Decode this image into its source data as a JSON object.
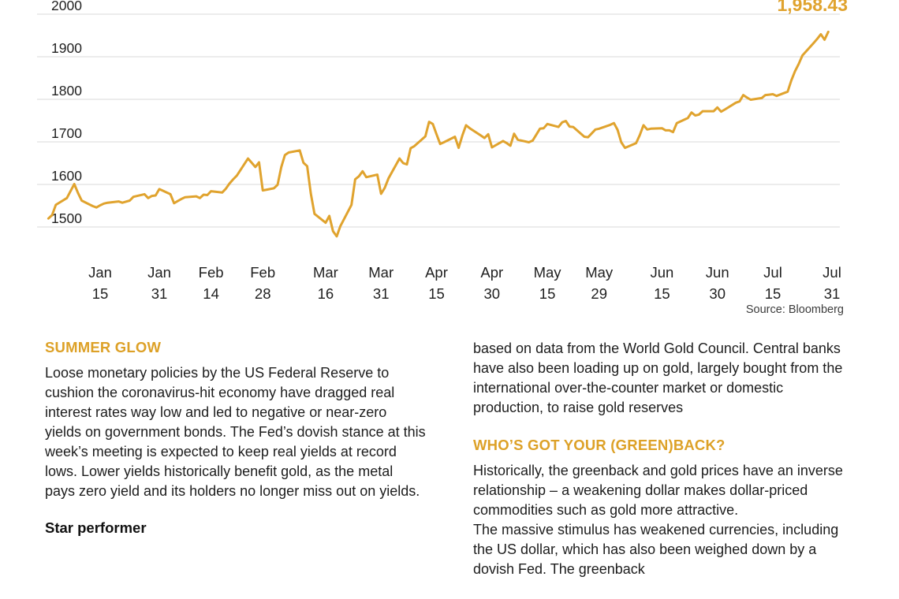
{
  "chart_data": {
    "type": "line",
    "title": "",
    "last_value_label": "1,958.43",
    "source": "Source: Bloomberg",
    "line_color": "#E0A32E",
    "grid_color": "#d8d8d8",
    "axis_text_color": "#1f1f1f",
    "source_text_color": "#3d3d3d",
    "ylim": [
      1450,
      2020
    ],
    "yticks": [
      2000,
      1900,
      1800,
      1700,
      1600,
      1500
    ],
    "xticks": [
      {
        "month": "Jan",
        "day": "15",
        "doy": 15
      },
      {
        "month": "Jan",
        "day": "31",
        "doy": 31
      },
      {
        "month": "Feb",
        "day": "14",
        "doy": 45
      },
      {
        "month": "Feb",
        "day": "28",
        "doy": 59
      },
      {
        "month": "Mar",
        "day": "16",
        "doy": 76
      },
      {
        "month": "Mar",
        "day": "31",
        "doy": 91
      },
      {
        "month": "Apr",
        "day": "15",
        "doy": 106
      },
      {
        "month": "Apr",
        "day": "30",
        "doy": 121
      },
      {
        "month": "May",
        "day": "15",
        "doy": 136
      },
      {
        "month": "May",
        "day": "29",
        "doy": 150
      },
      {
        "month": "Jun",
        "day": "15",
        "doy": 167
      },
      {
        "month": "Jun",
        "day": "30",
        "doy": 182
      },
      {
        "month": "Jul",
        "day": "15",
        "doy": 197
      },
      {
        "month": "Jul",
        "day": "31",
        "doy": 213
      }
    ],
    "series": [
      {
        "name": "gold-price",
        "points": [
          [
            1,
            1520
          ],
          [
            2,
            1528
          ],
          [
            3,
            1552
          ],
          [
            6,
            1568
          ],
          [
            8,
            1601
          ],
          [
            9,
            1580
          ],
          [
            10,
            1562
          ],
          [
            13,
            1549
          ],
          [
            14,
            1546
          ],
          [
            15,
            1551
          ],
          [
            16,
            1555
          ],
          [
            17,
            1557
          ],
          [
            20,
            1560
          ],
          [
            21,
            1557
          ],
          [
            23,
            1562
          ],
          [
            24,
            1571
          ],
          [
            27,
            1577
          ],
          [
            28,
            1568
          ],
          [
            29,
            1573
          ],
          [
            30,
            1574
          ],
          [
            31,
            1589
          ],
          [
            34,
            1577
          ],
          [
            35,
            1556
          ],
          [
            36,
            1561
          ],
          [
            37,
            1566
          ],
          [
            38,
            1570
          ],
          [
            41,
            1572
          ],
          [
            42,
            1568
          ],
          [
            43,
            1576
          ],
          [
            44,
            1575
          ],
          [
            45,
            1584
          ],
          [
            48,
            1581
          ],
          [
            49,
            1590
          ],
          [
            50,
            1602
          ],
          [
            51,
            1612
          ],
          [
            52,
            1621
          ],
          [
            55,
            1661
          ],
          [
            56,
            1651
          ],
          [
            57,
            1641
          ],
          [
            58,
            1652
          ],
          [
            59,
            1586
          ],
          [
            62,
            1591
          ],
          [
            63,
            1599
          ],
          [
            64,
            1641
          ],
          [
            65,
            1669
          ],
          [
            66,
            1675
          ],
          [
            69,
            1680
          ],
          [
            70,
            1651
          ],
          [
            71,
            1643
          ],
          [
            72,
            1578
          ],
          [
            73,
            1531
          ],
          [
            76,
            1510
          ],
          [
            77,
            1526
          ],
          [
            78,
            1490
          ],
          [
            79,
            1478
          ],
          [
            80,
            1502
          ],
          [
            83,
            1552
          ],
          [
            84,
            1612
          ],
          [
            85,
            1619
          ],
          [
            86,
            1631
          ],
          [
            87,
            1617
          ],
          [
            90,
            1623
          ],
          [
            91,
            1578
          ],
          [
            92,
            1592
          ],
          [
            93,
            1614
          ],
          [
            96,
            1661
          ],
          [
            97,
            1650
          ],
          [
            98,
            1647
          ],
          [
            99,
            1685
          ],
          [
            100,
            1690
          ],
          [
            103,
            1713
          ],
          [
            104,
            1747
          ],
          [
            105,
            1742
          ],
          [
            106,
            1718
          ],
          [
            107,
            1695
          ],
          [
            108,
            1699
          ],
          [
            111,
            1712
          ],
          [
            112,
            1686
          ],
          [
            113,
            1715
          ],
          [
            114,
            1739
          ],
          [
            115,
            1732
          ],
          [
            118,
            1715
          ],
          [
            119,
            1709
          ],
          [
            120,
            1718
          ],
          [
            121,
            1687
          ],
          [
            124,
            1702
          ],
          [
            125,
            1697
          ],
          [
            126,
            1691
          ],
          [
            127,
            1719
          ],
          [
            128,
            1705
          ],
          [
            131,
            1699
          ],
          [
            132,
            1703
          ],
          [
            133,
            1717
          ],
          [
            134,
            1731
          ],
          [
            135,
            1732
          ],
          [
            136,
            1742
          ],
          [
            139,
            1735
          ],
          [
            140,
            1746
          ],
          [
            141,
            1749
          ],
          [
            142,
            1736
          ],
          [
            143,
            1735
          ],
          [
            146,
            1712
          ],
          [
            147,
            1711
          ],
          [
            148,
            1720
          ],
          [
            149,
            1729
          ],
          [
            150,
            1731
          ],
          [
            153,
            1740
          ],
          [
            154,
            1744
          ],
          [
            155,
            1728
          ],
          [
            156,
            1699
          ],
          [
            157,
            1686
          ],
          [
            160,
            1697
          ],
          [
            161,
            1716
          ],
          [
            162,
            1739
          ],
          [
            163,
            1729
          ],
          [
            164,
            1731
          ],
          [
            167,
            1732
          ],
          [
            168,
            1727
          ],
          [
            169,
            1727
          ],
          [
            170,
            1723
          ],
          [
            171,
            1744
          ],
          [
            174,
            1756
          ],
          [
            175,
            1769
          ],
          [
            176,
            1762
          ],
          [
            177,
            1764
          ],
          [
            178,
            1772
          ],
          [
            181,
            1772
          ],
          [
            182,
            1781
          ],
          [
            183,
            1771
          ],
          [
            184,
            1776
          ],
          [
            187,
            1792
          ],
          [
            188,
            1795
          ],
          [
            189,
            1810
          ],
          [
            190,
            1804
          ],
          [
            191,
            1799
          ],
          [
            194,
            1803
          ],
          [
            195,
            1810
          ],
          [
            196,
            1811
          ],
          [
            197,
            1812
          ],
          [
            198,
            1808
          ],
          [
            201,
            1818
          ],
          [
            202,
            1844
          ],
          [
            203,
            1866
          ],
          [
            204,
            1883
          ],
          [
            205,
            1903
          ],
          [
            208,
            1932
          ],
          [
            209,
            1942
          ],
          [
            210,
            1953
          ],
          [
            211,
            1940
          ],
          [
            212,
            1958.43
          ]
        ]
      }
    ]
  },
  "articles": {
    "left": {
      "heading": "SUMMER GLOW",
      "body": "Loose monetary policies by the US Federal Reserve to cushion the coronavirus-hit economy have dragged real interest rates way low and led to negative or near-zero yields on government bonds. The Fed’s dovish stance at this week’s meeting is expected to keep real yields at record lows. Lower yields historically benefit gold, as the metal pays zero yield and its holders no longer miss out on yields.",
      "subheading": "Star performer"
    },
    "right": {
      "intro": "based on data from the World Gold Council. Central banks have also been loading up on gold, largely bought from the international over-the-counter market or domestic production, to raise gold reserves",
      "heading": "WHO’S GOT YOUR (GREEN)BACK?",
      "body": "Historically, the greenback and gold prices have an inverse relationship – a weakening dollar makes dollar-priced commodities such as gold more attractive.\nThe massive stimulus has weakened currencies, including the US dollar, which has also been weighed down by a dovish Fed. The greenback"
    }
  }
}
